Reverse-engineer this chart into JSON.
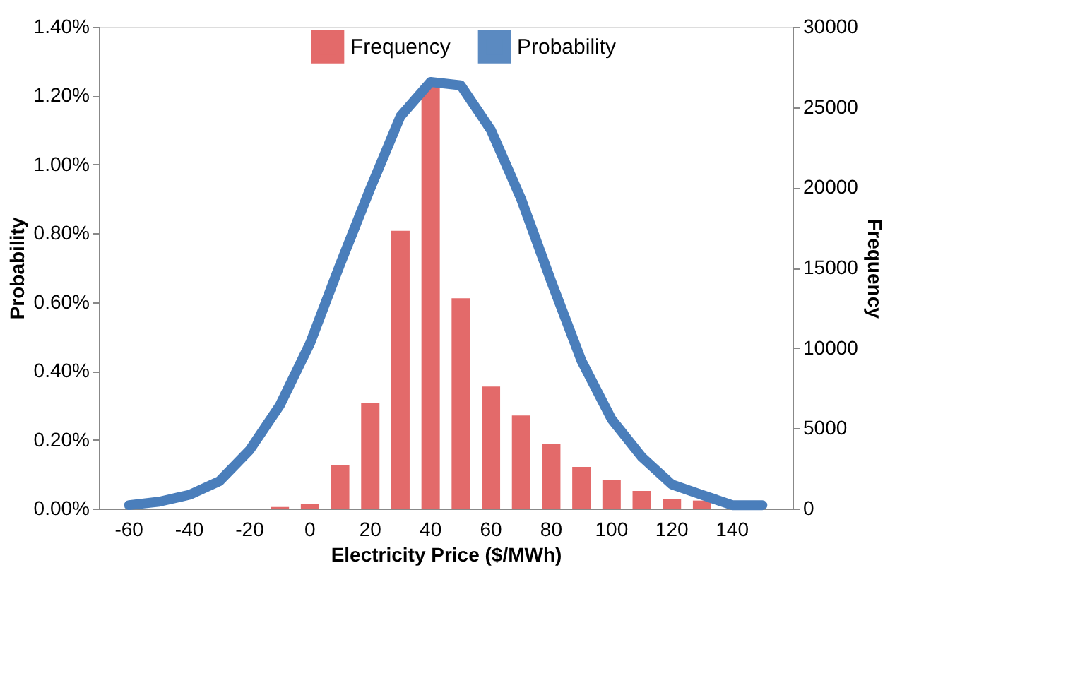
{
  "chart_data": {
    "type": "bar",
    "xlabel": "Electricity Price ($/MWh)",
    "ylabel": "Probability",
    "y2label": "Frequency",
    "categories": [
      "-60",
      null,
      "-40",
      null,
      "-20",
      null,
      "0",
      null,
      "20",
      null,
      "40",
      null,
      "60",
      null,
      "80",
      null,
      "100",
      null,
      "120",
      null,
      "140",
      null
    ],
    "series": [
      {
        "name": "Frequency",
        "axis": "y2",
        "color": "#e05a5a",
        "values": [
          0,
          0,
          0,
          0,
          0,
          100,
          300,
          2700,
          6600,
          17300,
          26300,
          13100,
          7600,
          5800,
          4000,
          2600,
          1800,
          1100,
          600,
          500,
          null,
          null
        ]
      },
      {
        "name": "Probability",
        "type": "line",
        "color": "#4a7ebb",
        "values": [
          0.01,
          0.02,
          0.04,
          0.08,
          0.17,
          0.3,
          0.48,
          0.71,
          0.93,
          1.14,
          1.24,
          1.23,
          1.1,
          0.9,
          0.66,
          0.43,
          0.26,
          0.15,
          0.07,
          0.04,
          0.01,
          0.01
        ]
      }
    ],
    "ylim": [
      0,
      1.4
    ],
    "yticks": [
      {
        "value": 0,
        "label": "0.00%"
      },
      {
        "value": 0.2,
        "label": "0.20%"
      },
      {
        "value": 0.4,
        "label": "0.40%"
      },
      {
        "value": 0.6,
        "label": "0.60%"
      },
      {
        "value": 0.8,
        "label": "0.80%"
      },
      {
        "value": 1.0,
        "label": "1.00%"
      },
      {
        "value": 1.2,
        "label": "1.20%"
      },
      {
        "value": 1.4,
        "label": "1.40%"
      }
    ],
    "y2lim": [
      0,
      30000
    ],
    "y2ticks": [
      0,
      5000,
      10000,
      15000,
      20000,
      25000,
      30000
    ],
    "grid": false,
    "legend": "top",
    "marker": "none",
    "line_style": "solid"
  }
}
